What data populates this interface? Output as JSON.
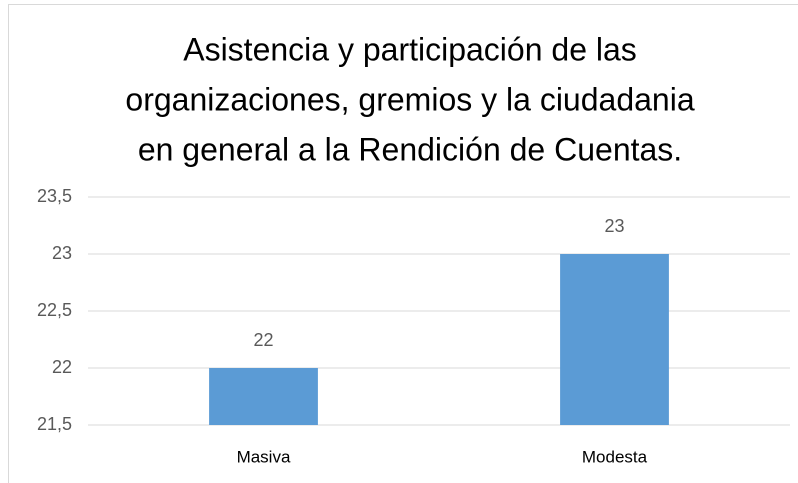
{
  "chart_data": {
    "type": "bar",
    "title": [
      "Asistencia y participación  de las",
      "organizaciones, gremios y la ciudadania",
      "en general a la Rendición de Cuentas."
    ],
    "categories": [
      "Masiva",
      "Modesta"
    ],
    "values": [
      22,
      23
    ],
    "color": "#5b9bd5",
    "ylim": [
      21.5,
      23.5
    ],
    "yticks": [
      {
        "value": 21.5,
        "label": "21,5"
      },
      22,
      {
        "value": 22.5,
        "label": "22,5"
      },
      23,
      {
        "value": 23.5,
        "label": "23,5"
      }
    ],
    "grid": true
  }
}
